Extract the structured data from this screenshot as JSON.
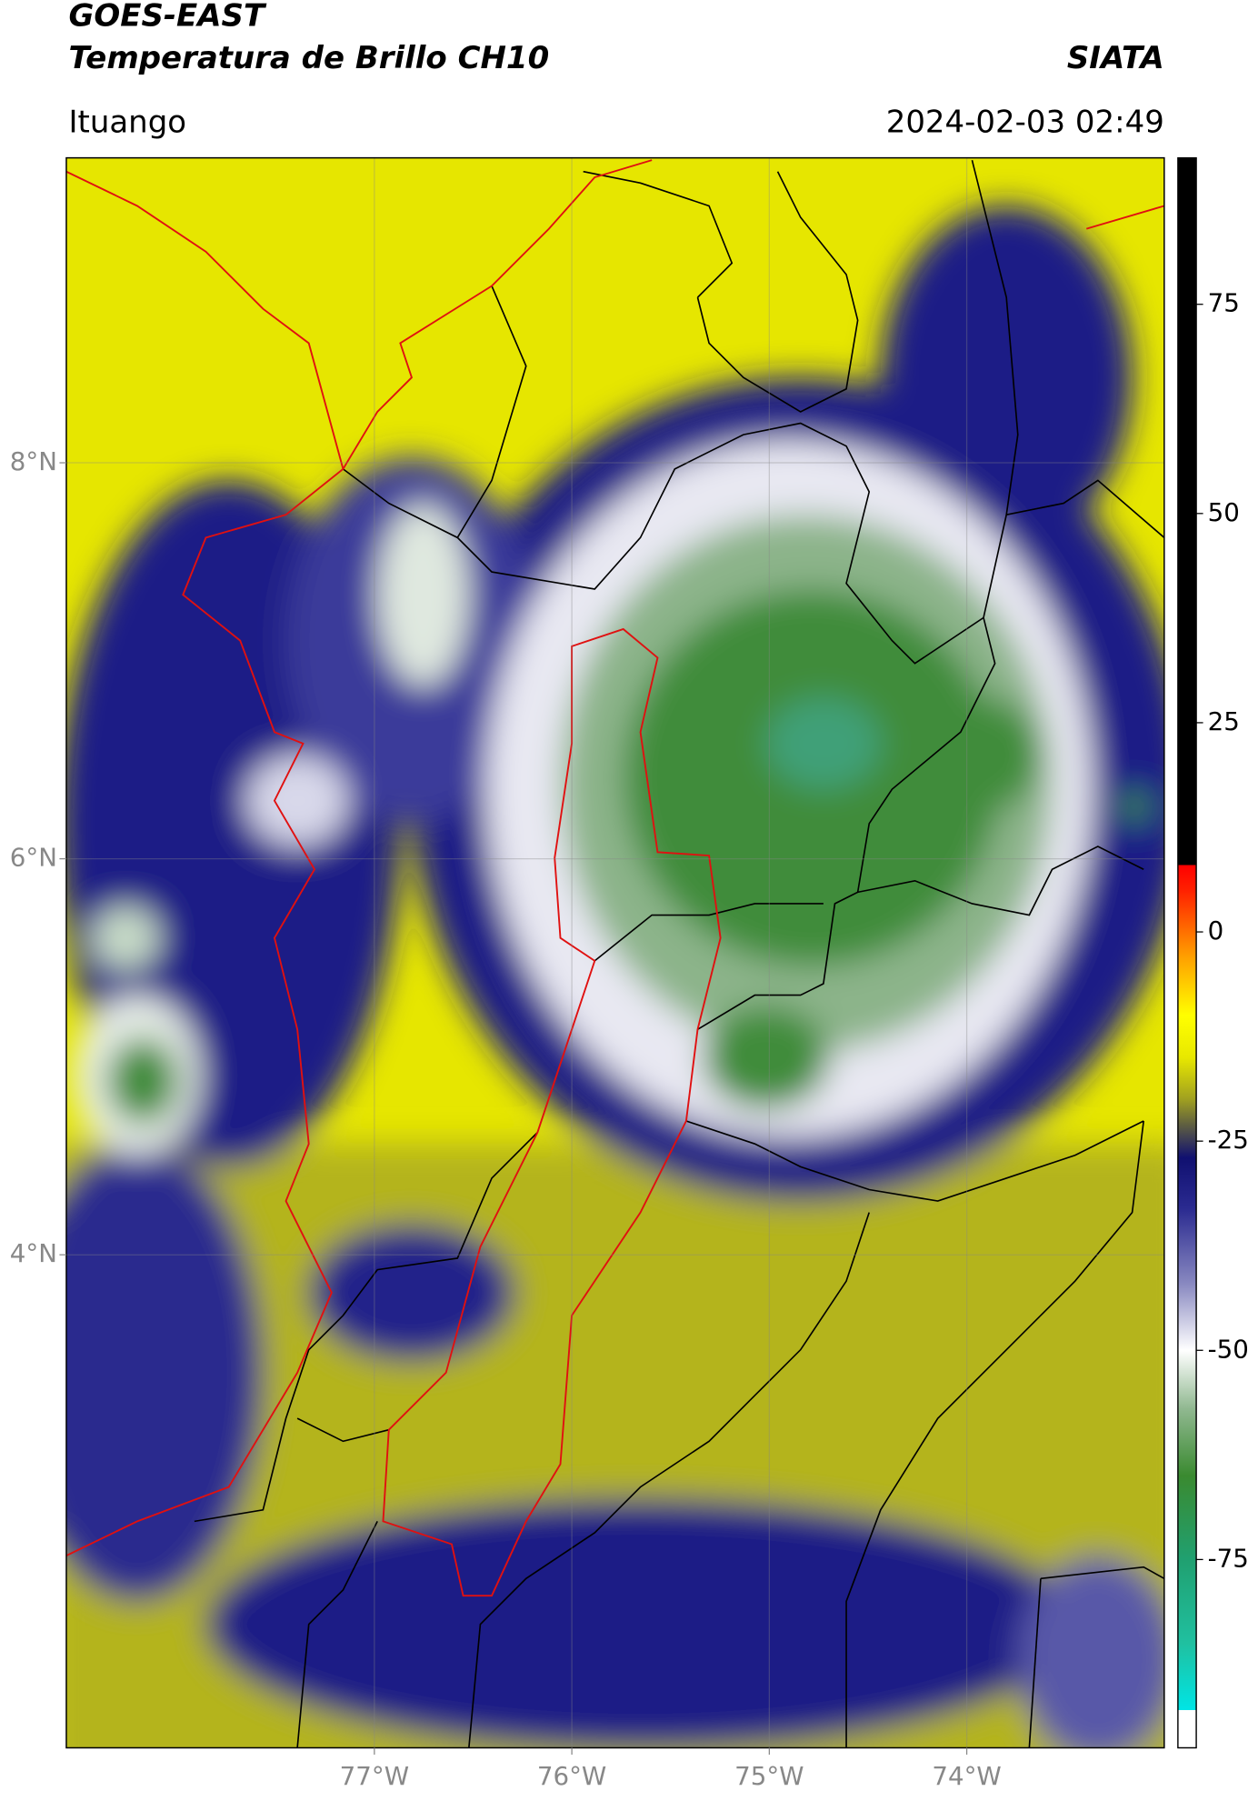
{
  "header": {
    "title": "GOES-EAST",
    "subtitle": "Temperatura de Brillo CH10",
    "org": "SIATA",
    "location": "Ituango",
    "datetime": "2024-02-03 02:49"
  },
  "map": {
    "xlim": [
      -78.56,
      -73.0
    ],
    "ylim": [
      1.51,
      9.54
    ],
    "xticks": [
      {
        "value": -77,
        "label": "77°W"
      },
      {
        "value": -76,
        "label": "76°W"
      },
      {
        "value": -75,
        "label": "75°W"
      },
      {
        "value": -74,
        "label": "74°W"
      }
    ],
    "yticks": [
      {
        "value": 4,
        "label": "4°N"
      },
      {
        "value": 6,
        "label": "6°N"
      },
      {
        "value": 8,
        "label": "8°N"
      }
    ],
    "grid": true
  },
  "colorbar": {
    "clim": [
      -97.5,
      92.5
    ],
    "ticks": [
      -75,
      -50,
      -25,
      0,
      25,
      50,
      75
    ],
    "stops": [
      {
        "value": 92.5,
        "color": "#000000"
      },
      {
        "value": 8,
        "color": "#000000"
      },
      {
        "value": 8,
        "color": "#ff0000"
      },
      {
        "value": 5,
        "color": "#ff2000"
      },
      {
        "value": -3,
        "color": "#ffa000"
      },
      {
        "value": -10,
        "color": "#ffff00"
      },
      {
        "value": -15,
        "color": "#e8e800"
      },
      {
        "value": -20,
        "color": "#a0a020"
      },
      {
        "value": -23,
        "color": "#606040"
      },
      {
        "value": -27,
        "color": "#101070"
      },
      {
        "value": -33,
        "color": "#2a2a90"
      },
      {
        "value": -42,
        "color": "#8888c0"
      },
      {
        "value": -50,
        "color": "#ffffff"
      },
      {
        "value": -57,
        "color": "#90b890"
      },
      {
        "value": -65,
        "color": "#3a8a30"
      },
      {
        "value": -75,
        "color": "#20a070"
      },
      {
        "value": -85,
        "color": "#20c0a0"
      },
      {
        "value": -93,
        "color": "#00e5e5"
      },
      {
        "value": -93,
        "color": "#ffffff"
      },
      {
        "value": -97.5,
        "color": "#ffffff"
      }
    ]
  }
}
